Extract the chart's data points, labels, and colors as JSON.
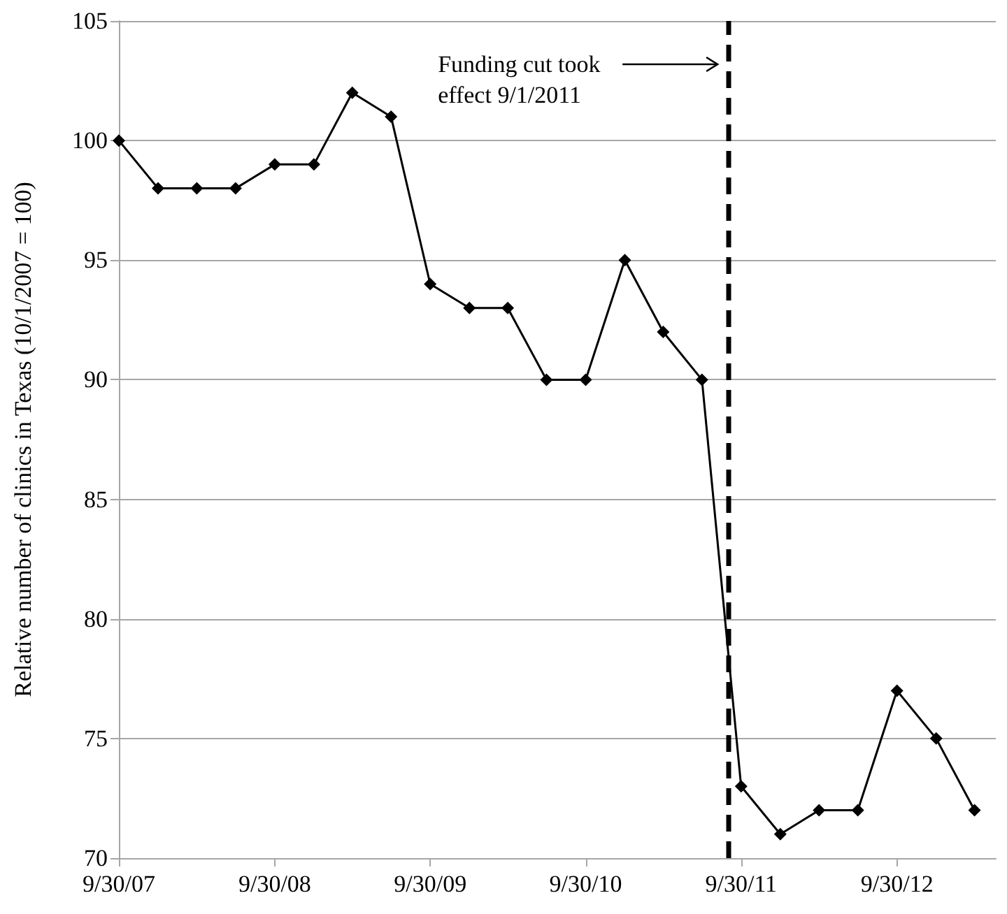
{
  "chart_data": {
    "type": "line",
    "ylabel": "Relative number of clinics in Texas (10/1/2007 = 100)",
    "x": [
      "2007-09-30",
      "2007-12-31",
      "2008-03-31",
      "2008-06-30",
      "2008-09-30",
      "2008-12-31",
      "2009-03-31",
      "2009-06-30",
      "2009-09-30",
      "2009-12-31",
      "2010-03-31",
      "2010-06-30",
      "2010-09-30",
      "2010-12-31",
      "2011-03-31",
      "2011-06-30",
      "2011-09-30",
      "2011-12-31",
      "2012-03-31",
      "2012-06-30",
      "2012-09-30",
      "2012-12-31",
      "2013-03-31"
    ],
    "series": [
      {
        "color": "#000000",
        "values": [
          100,
          98,
          98,
          98,
          99,
          99,
          102,
          101,
          94,
          93,
          93,
          90,
          90,
          95,
          92,
          90,
          73,
          71,
          72,
          72,
          77,
          75,
          72
        ]
      }
    ],
    "xlim": [
      "2007-09-30",
      "2013-05-20"
    ],
    "xticks": [
      {
        "value": "2007-09-30",
        "label": "9/30/07"
      },
      {
        "value": "2008-09-30",
        "label": "9/30/08"
      },
      {
        "value": "2009-09-30",
        "label": "9/30/09"
      },
      {
        "value": "2010-09-30",
        "label": "9/30/10"
      },
      {
        "value": "2011-09-30",
        "label": "9/30/11"
      },
      {
        "value": "2012-09-30",
        "label": "9/30/12"
      }
    ],
    "ylim": [
      70,
      105
    ],
    "yticks": [
      70,
      75,
      80,
      85,
      90,
      95,
      100,
      105
    ],
    "grid": "y",
    "marker": "diamond",
    "line_style": "solid",
    "ref_lines": [
      {
        "axis": "x",
        "value": "2011-09-01",
        "label": "Funding cut took\neffect 9/1/2011",
        "color": "#000000",
        "line_style": "dashed"
      }
    ]
  }
}
